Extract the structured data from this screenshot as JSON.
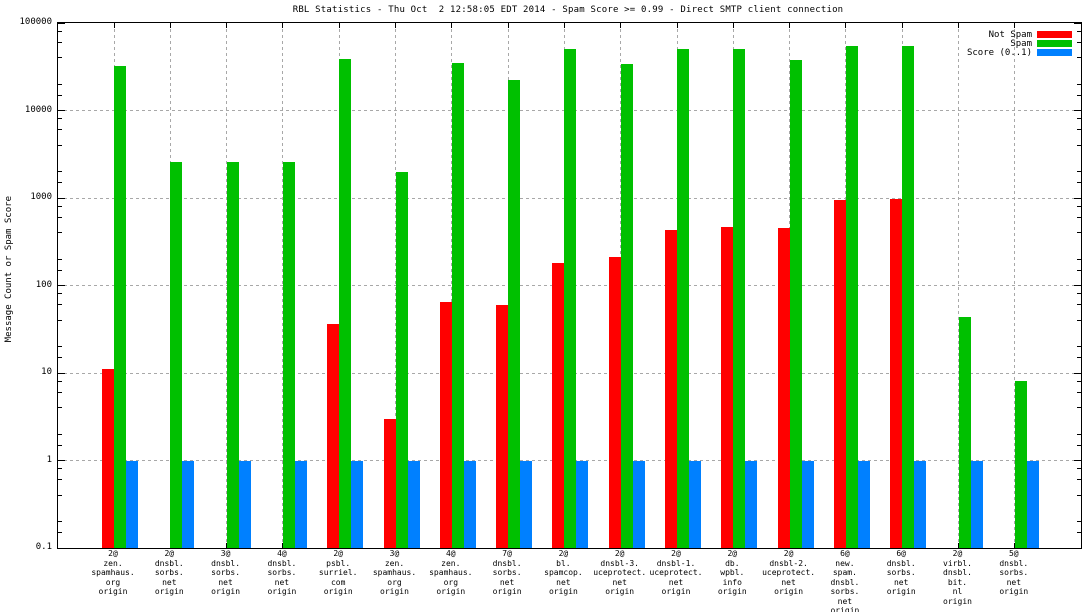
{
  "title": "RBL Statistics - Thu Oct  2 12:58:05 EDT 2014 - Spam Score >= 0.99 - Direct SMTP client connection",
  "y_axis": {
    "label": "Message Count or Spam Score",
    "ticks": [
      {
        "label": "100000",
        "value": 100000
      },
      {
        "label": "10000",
        "value": 10000
      },
      {
        "label": "1000",
        "value": 1000
      },
      {
        "label": "100",
        "value": 100
      },
      {
        "label": "10",
        "value": 10
      },
      {
        "label": "1",
        "value": 1
      },
      {
        "label": "0.1",
        "value": 0.1
      }
    ]
  },
  "legend": [
    {
      "label": "Not Spam",
      "color": "#ff0000"
    },
    {
      "label": "Spam",
      "color": "#00c000"
    },
    {
      "label": "Score (0..1)",
      "color": "#0080ff"
    }
  ],
  "chart_data": {
    "type": "bar",
    "y_scale": "log",
    "ylim": [
      0.1,
      100000
    ],
    "grid": true,
    "legend_position": "top-right",
    "title": "RBL Statistics - Thu Oct  2 12:58:05 EDT 2014 - Spam Score >= 0.99 - Direct SMTP client connection",
    "xlabel": "",
    "ylabel": "Message Count or Spam Score",
    "categories": [
      [
        "2@",
        "zen.",
        "spamhaus.",
        "org",
        "origin"
      ],
      [
        "2@",
        "dnsbl.",
        "sorbs.",
        "net",
        "origin"
      ],
      [
        "3@",
        "dnsbl.",
        "sorbs.",
        "net",
        "origin"
      ],
      [
        "4@",
        "dnsbl.",
        "sorbs.",
        "net",
        "origin"
      ],
      [
        "2@",
        "psbl.",
        "surriel.",
        "com",
        "origin"
      ],
      [
        "3@",
        "zen.",
        "spamhaus.",
        "org",
        "origin"
      ],
      [
        "4@",
        "zen.",
        "spamhaus.",
        "org",
        "origin"
      ],
      [
        "7@",
        "dnsbl.",
        "sorbs.",
        "net",
        "origin"
      ],
      [
        "2@",
        "bl.",
        "spamcop.",
        "net",
        "origin"
      ],
      [
        "2@",
        "dnsbl-3.",
        "uceprotect.",
        "net",
        "origin"
      ],
      [
        "2@",
        "dnsbl-1.",
        "uceprotect.",
        "net",
        "origin"
      ],
      [
        "2@",
        "db.",
        "wpbl.",
        "info",
        "origin"
      ],
      [
        "2@",
        "dnsbl-2.",
        "uceprotect.",
        "net",
        "origin"
      ],
      [
        "6@",
        "new.",
        "spam.",
        "dnsbl.",
        "sorbs.",
        "net",
        "origin"
      ],
      [
        "6@",
        "dnsbl.",
        "sorbs.",
        "net",
        "origin"
      ],
      [
        "2@",
        "virbl.",
        "dnsbl.",
        "bit.",
        "nl",
        "origin"
      ],
      [
        "5@",
        "dnsbl.",
        "sorbs.",
        "net",
        "origin"
      ]
    ],
    "series": [
      {
        "name": "Not Spam",
        "color": "#ff0000",
        "values": [
          11,
          null,
          null,
          null,
          36,
          3,
          64,
          60,
          180,
          210,
          430,
          470,
          450,
          950,
          980,
          null,
          null
        ]
      },
      {
        "name": "Spam",
        "color": "#00c000",
        "values": [
          32000,
          2600,
          2600,
          2600,
          39000,
          2000,
          35000,
          22500,
          50000,
          34000,
          51000,
          50000,
          38000,
          54000,
          55000,
          44,
          8
        ]
      },
      {
        "name": "Score (0..1)",
        "color": "#0080ff",
        "values": [
          1,
          1,
          1,
          1,
          1,
          1,
          1,
          1,
          1,
          1,
          1,
          1,
          1,
          1,
          1,
          1,
          1
        ]
      }
    ]
  }
}
